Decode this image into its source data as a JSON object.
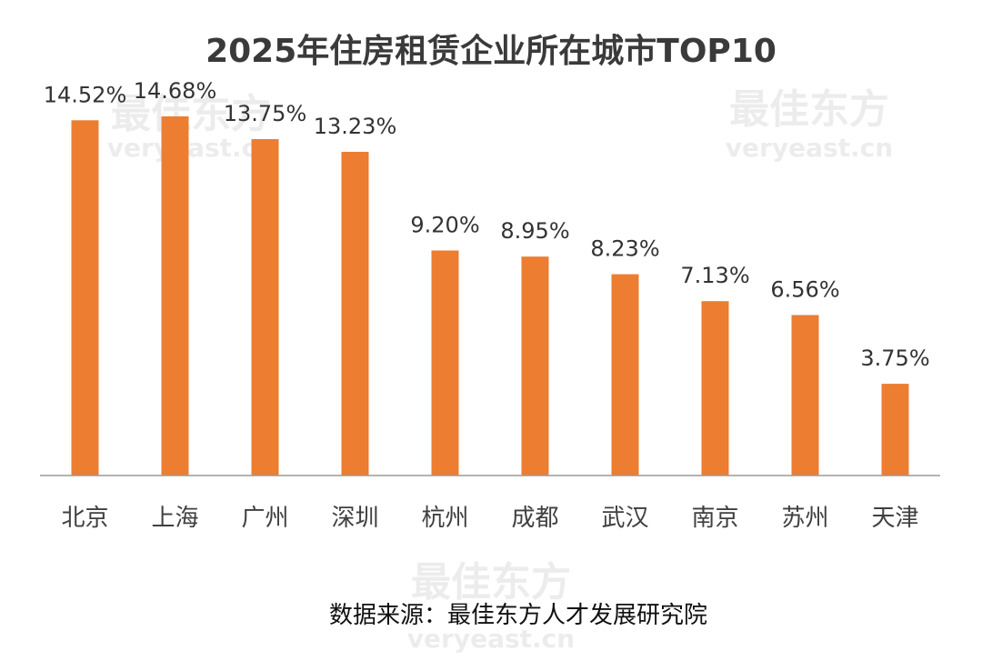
{
  "chart_data": {
    "type": "bar",
    "title": "2025年住房租赁企业所在城市TOP10",
    "categories": [
      "北京",
      "上海",
      "广州",
      "深圳",
      "杭州",
      "成都",
      "武汉",
      "南京",
      "苏州",
      "天津"
    ],
    "values": [
      14.52,
      14.68,
      13.75,
      13.23,
      9.2,
      8.95,
      8.23,
      7.13,
      6.56,
      3.75
    ],
    "value_labels": [
      "14.52%",
      "14.68%",
      "13.75%",
      "13.23%",
      "9.20%",
      "8.95%",
      "8.23%",
      "7.13%",
      "6.56%",
      "3.75%"
    ],
    "ylim": [
      0,
      14.68
    ],
    "grid": false,
    "bar_color": "#ED7D31"
  },
  "source_text": "数据来源：最佳东方人才发展研究院",
  "watermark": {
    "cn": "最佳东方",
    "en": "veryeast.cn"
  }
}
